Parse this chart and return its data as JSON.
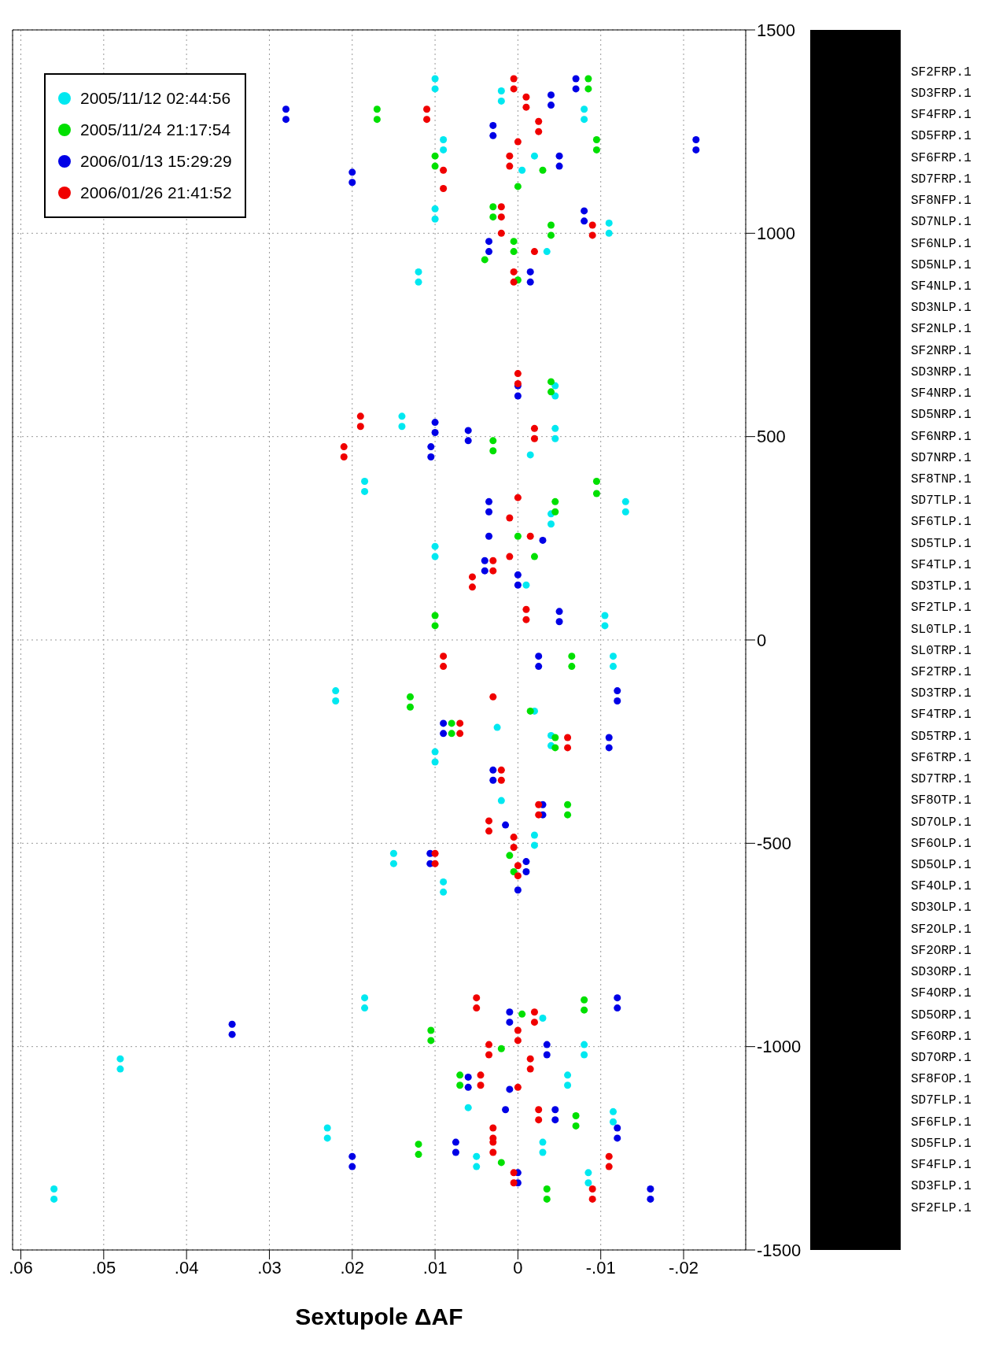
{
  "chart_data": {
    "type": "scatter",
    "xlabel": "Sextupole ΔAF",
    "xlim": [
      0.061,
      -0.0275
    ],
    "xticks": [
      {
        "value": 0.06,
        "label": ".06"
      },
      {
        "value": 0.05,
        "label": ".05"
      },
      {
        "value": 0.04,
        "label": ".04"
      },
      {
        "value": 0.03,
        "label": ".03"
      },
      {
        "value": 0.02,
        "label": ".02"
      },
      {
        "value": 0.01,
        "label": ".01"
      },
      0,
      {
        "value": -0.01,
        "label": "-.01"
      },
      {
        "value": -0.02,
        "label": "-.02"
      }
    ],
    "ylim": [
      -1500,
      1500
    ],
    "yticks": [
      -1500,
      -1000,
      -500,
      0,
      500,
      1000,
      1500
    ],
    "grid": true,
    "legend": "top left",
    "marker": "circle",
    "series": [
      {
        "name": "2005/11/12 02:44:56",
        "color": "#00e8f0",
        "values": [
          1380,
          1355,
          1350,
          1325,
          1305,
          1280,
          1230,
          1205,
          1190,
          1155,
          1060,
          1035,
          1025,
          1000,
          955,
          905,
          880,
          625,
          600,
          550,
          525,
          520,
          495,
          455,
          310,
          285,
          340,
          315,
          390,
          365,
          230,
          205,
          135,
          60,
          35,
          -40,
          -65,
          -125,
          -150,
          -175,
          -215,
          -235,
          -260,
          -275,
          -300,
          -395,
          -480,
          -505,
          -525,
          -550,
          -595,
          -620,
          -880,
          -905,
          -930,
          -995,
          -1020,
          -1030,
          -1055,
          -1070,
          -1095,
          -1150,
          -1200,
          -1225,
          -1160,
          -1185,
          -1235,
          -1260,
          -1270,
          -1295,
          -1310,
          -1335,
          -1350,
          -1375
        ],
        "x": [
          0.01,
          0.01,
          0.002,
          0.002,
          -0.008,
          -0.008,
          0.009,
          0.009,
          -0.002,
          -0.0005,
          0.01,
          0.01,
          -0.011,
          -0.011,
          -0.0035,
          0.012,
          0.012,
          -0.0045,
          -0.0045,
          0.014,
          0.014,
          -0.0045,
          -0.0045,
          -0.0015,
          -0.004,
          -0.004,
          -0.013,
          -0.013,
          0.0185,
          0.0185,
          0.01,
          0.01,
          -0.001,
          -0.0105,
          -0.0105,
          -0.0115,
          -0.0115,
          0.022,
          0.022,
          -0.002,
          0.0025,
          -0.004,
          -0.004,
          0.01,
          0.01,
          0.002,
          -0.002,
          -0.002,
          0.015,
          0.015,
          0.009,
          0.009,
          0.0185,
          0.0185,
          -0.003,
          -0.008,
          -0.008,
          0.048,
          0.048,
          -0.006,
          -0.006,
          0.006,
          0.023,
          0.023,
          -0.0115,
          -0.0115,
          -0.003,
          -0.003,
          0.005,
          0.005,
          -0.0085,
          -0.0085,
          0.056,
          0.056
        ]
      },
      {
        "name": "2005/11/24 21:17:54",
        "color": "#00e000",
        "values": [
          1380,
          1355,
          1305,
          1280,
          1230,
          1205,
          1190,
          1165,
          1155,
          1115,
          1065,
          1040,
          1020,
          995,
          980,
          955,
          935,
          885,
          635,
          610,
          490,
          465,
          390,
          360,
          340,
          315,
          255,
          205,
          60,
          35,
          -40,
          -65,
          -140,
          -165,
          -175,
          -205,
          -230,
          -240,
          -265,
          -405,
          -430,
          -530,
          -570,
          -885,
          -910,
          -960,
          -985,
          -920,
          -1005,
          -1070,
          -1095,
          -1170,
          -1195,
          -1240,
          -1265,
          -1285,
          -1350,
          -1375
        ],
        "x": [
          -0.0085,
          -0.0085,
          0.017,
          0.017,
          -0.0095,
          -0.0095,
          0.01,
          0.01,
          -0.003,
          0,
          0.003,
          0.003,
          -0.004,
          -0.004,
          0.0005,
          0.0005,
          0.004,
          0,
          -0.004,
          -0.004,
          0.003,
          0.003,
          -0.0095,
          -0.0095,
          -0.0045,
          -0.0045,
          0,
          -0.002,
          0.01,
          0.01,
          -0.0065,
          -0.0065,
          0.013,
          0.013,
          -0.0015,
          0.008,
          0.008,
          -0.0045,
          -0.0045,
          -0.006,
          -0.006,
          0.001,
          0.0005,
          -0.008,
          -0.008,
          0.0105,
          0.0105,
          -0.0005,
          0.002,
          0.007,
          0.007,
          -0.007,
          -0.007,
          0.012,
          0.012,
          0.002,
          -0.0035,
          -0.0035
        ]
      },
      {
        "name": "2006/01/13 15:29:29",
        "color": "#0000e6",
        "values": [
          1380,
          1355,
          1340,
          1315,
          1305,
          1280,
          1265,
          1240,
          1190,
          1165,
          1150,
          1125,
          1230,
          1205,
          1055,
          1030,
          980,
          955,
          905,
          880,
          625,
          600,
          535,
          510,
          515,
          490,
          475,
          450,
          340,
          315,
          160,
          135,
          245,
          255,
          195,
          170,
          70,
          45,
          -40,
          -65,
          -125,
          -150,
          -205,
          -230,
          -240,
          -265,
          -320,
          -345,
          -405,
          -430,
          -455,
          -525,
          -550,
          -545,
          -570,
          -615,
          -880,
          -905,
          -945,
          -970,
          -915,
          -940,
          -995,
          -1020,
          -1075,
          -1100,
          -1105,
          -1155,
          -1155,
          -1180,
          -1200,
          -1225,
          -1235,
          -1260,
          -1270,
          -1295,
          -1310,
          -1335,
          -1350,
          -1375
        ],
        "x": [
          -0.007,
          -0.007,
          -0.004,
          -0.004,
          0.028,
          0.028,
          0.003,
          0.003,
          -0.005,
          -0.005,
          0.02,
          0.02,
          -0.0215,
          -0.0215,
          -0.008,
          -0.008,
          0.0035,
          0.0035,
          -0.0015,
          -0.0015,
          0,
          0,
          0.01,
          0.01,
          0.006,
          0.006,
          0.0105,
          0.0105,
          0.0035,
          0.0035,
          0,
          0,
          -0.003,
          0.0035,
          0.004,
          0.004,
          -0.005,
          -0.005,
          -0.0025,
          -0.0025,
          -0.012,
          -0.012,
          0.009,
          0.009,
          -0.011,
          -0.011,
          0.003,
          0.003,
          -0.003,
          -0.003,
          0.0015,
          0.0106,
          0.0106,
          -0.001,
          -0.001,
          0,
          -0.012,
          -0.012,
          0.0345,
          0.0345,
          0.001,
          0.001,
          -0.0035,
          -0.0035,
          0.006,
          0.006,
          0.001,
          0.0015,
          -0.0045,
          -0.0045,
          -0.012,
          -0.012,
          0.0075,
          0.0075,
          0.02,
          0.02,
          0,
          0,
          -0.016,
          -0.016
        ]
      },
      {
        "name": "2006/01/26 21:41:52",
        "color": "#f00000",
        "values": [
          1380,
          1355,
          1335,
          1310,
          1305,
          1280,
          1275,
          1250,
          1225,
          1190,
          1165,
          1155,
          1110,
          1065,
          1040,
          1000,
          1020,
          995,
          955,
          905,
          880,
          655,
          630,
          550,
          525,
          475,
          450,
          520,
          495,
          350,
          300,
          255,
          205,
          195,
          170,
          155,
          130,
          75,
          50,
          -40,
          -65,
          -140,
          -205,
          -230,
          -240,
          -265,
          -320,
          -345,
          -405,
          -430,
          -445,
          -470,
          -525,
          -550,
          -485,
          -510,
          -555,
          -580,
          -880,
          -905,
          -915,
          -940,
          -960,
          -985,
          -995,
          -1020,
          -1030,
          -1055,
          -1070,
          -1095,
          -1100,
          -1155,
          -1180,
          -1200,
          -1225,
          -1235,
          -1260,
          -1270,
          -1295,
          -1310,
          -1335,
          -1350,
          -1375
        ],
        "x": [
          0.0005,
          0.0005,
          -0.001,
          -0.001,
          0.011,
          0.011,
          -0.0025,
          -0.0025,
          0,
          0.001,
          0.001,
          0.009,
          0.009,
          0.002,
          0.002,
          0.002,
          -0.009,
          -0.009,
          -0.002,
          0.0005,
          0.0005,
          0,
          0,
          0.019,
          0.019,
          0.021,
          0.021,
          -0.002,
          -0.002,
          0,
          0.001,
          -0.0015,
          0.001,
          0.003,
          0.003,
          0.0055,
          0.0055,
          -0.001,
          -0.001,
          0.009,
          0.009,
          0.003,
          0.007,
          0.007,
          -0.006,
          -0.006,
          0.002,
          0.002,
          -0.0025,
          -0.0025,
          0.0035,
          0.0035,
          0.01,
          0.01,
          0.0005,
          0.0005,
          0,
          0,
          0.005,
          0.005,
          -0.002,
          -0.002,
          0,
          0,
          0.0035,
          0.0035,
          -0.0015,
          -0.0015,
          0.0045,
          0.0045,
          0,
          -0.0025,
          -0.0025,
          0.003,
          0.003,
          0.003,
          0.003,
          -0.011,
          -0.011,
          0.0005,
          0.0005,
          -0.009,
          -0.009
        ]
      }
    ],
    "annotations": [
      "SF2FRP.1",
      "SD3FRP.1",
      "SF4FRP.1",
      "SD5FRP.1",
      "SF6FRP.1",
      "SD7FRP.1",
      "SF8NFP.1",
      "SD7NLP.1",
      "SF6NLP.1",
      "SD5NLP.1",
      "SF4NLP.1",
      "SD3NLP.1",
      "SF2NLP.1",
      "SF2NRP.1",
      "SD3NRP.1",
      "SF4NRP.1",
      "SD5NRP.1",
      "SF6NRP.1",
      "SD7NRP.1",
      "SF8TNP.1",
      "SD7TLP.1",
      "SF6TLP.1",
      "SD5TLP.1",
      "SF4TLP.1",
      "SD3TLP.1",
      "SF2TLP.1",
      "SL0TLP.1",
      "SL0TRP.1",
      "SF2TRP.1",
      "SD3TRP.1",
      "SF4TRP.1",
      "SD5TRP.1",
      "SF6TRP.1",
      "SD7TRP.1",
      "SF8OTP.1",
      "SD7OLP.1",
      "SF6OLP.1",
      "SD5OLP.1",
      "SF4OLP.1",
      "SD3OLP.1",
      "SF2OLP.1",
      "SF2ORP.1",
      "SD3ORP.1",
      "SF4ORP.1",
      "SD5ORP.1",
      "SF6ORP.1",
      "SD7ORP.1",
      "SF8FOP.1",
      "SD7FLP.1",
      "SF6FLP.1",
      "SD5FLP.1",
      "SF4FLP.1",
      "SD3FLP.1",
      "SF2FLP.1"
    ]
  }
}
